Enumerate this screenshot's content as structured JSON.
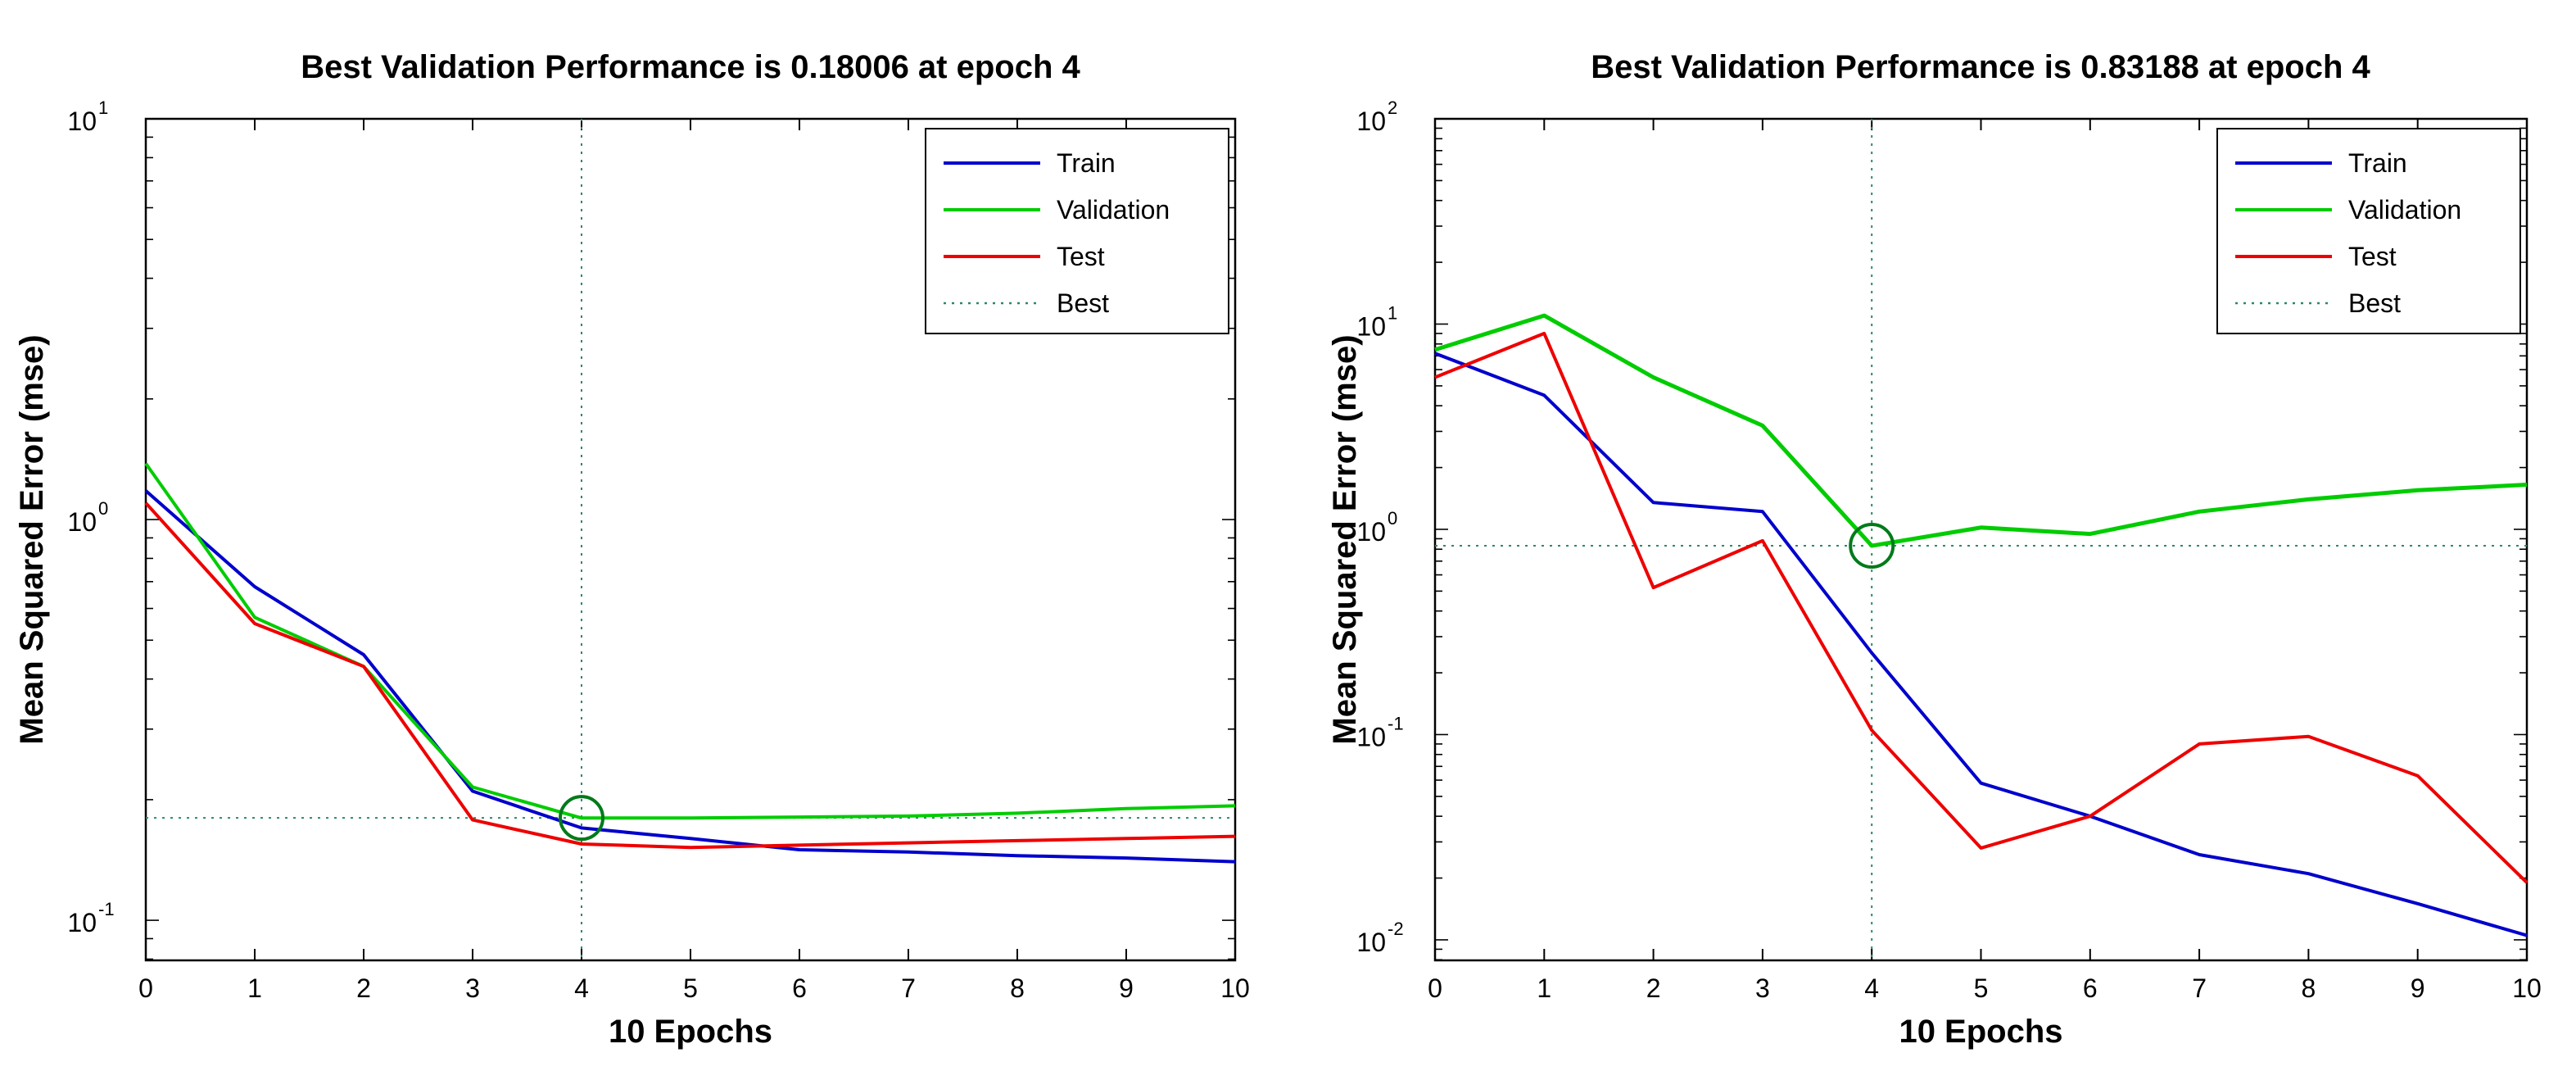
{
  "chart_data": [
    {
      "type": "line",
      "title": "Best Validation Performance is 0.18006 at epoch 4",
      "xlabel": "10 Epochs",
      "ylabel": "Mean Squared Error  (mse)",
      "yscale": "log",
      "xlim": [
        0,
        10
      ],
      "ylim_exp": [
        -1.1,
        1
      ],
      "xticks": [
        "0",
        "1",
        "2",
        "3",
        "4",
        "5",
        "6",
        "7",
        "8",
        "9",
        "10"
      ],
      "yticks": [
        {
          "base": "10",
          "exp": "-1",
          "e": -1
        },
        {
          "base": "10",
          "exp": "0",
          "e": 0
        },
        {
          "base": "10",
          "exp": "1",
          "e": 1
        }
      ],
      "best_epoch": 4,
      "best_value": 0.18006,
      "legend_position": "top-right",
      "legend": [
        "Train",
        "Validation",
        "Test",
        "Best"
      ],
      "series": [
        {
          "name": "Train",
          "color": "#0000cc",
          "x": [
            0,
            1,
            2,
            3,
            4,
            5,
            6,
            7,
            8,
            9,
            10
          ],
          "values": [
            1.18,
            0.68,
            0.46,
            0.21,
            0.17,
            0.16,
            0.15,
            0.148,
            0.145,
            0.143,
            0.14
          ]
        },
        {
          "name": "Validation",
          "color": "#00cc00",
          "x": [
            0,
            1,
            2,
            3,
            4,
            5,
            6,
            7,
            8,
            9,
            10
          ],
          "values": [
            1.38,
            0.57,
            0.43,
            0.215,
            0.18,
            0.18,
            0.181,
            0.182,
            0.185,
            0.19,
            0.193
          ]
        },
        {
          "name": "Test",
          "color": "#ee0000",
          "x": [
            0,
            1,
            2,
            3,
            4,
            5,
            6,
            7,
            8,
            9,
            10
          ],
          "values": [
            1.1,
            0.55,
            0.43,
            0.178,
            0.155,
            0.152,
            0.154,
            0.156,
            0.158,
            0.16,
            0.162
          ]
        }
      ]
    },
    {
      "type": "line",
      "title": "Best Validation Performance is 0.83188 at epoch 4",
      "xlabel": "10 Epochs",
      "ylabel": "Mean Squared Error  (mse)",
      "yscale": "log",
      "xlim": [
        0,
        10
      ],
      "ylim_exp": [
        -2.1,
        2
      ],
      "xticks": [
        "0",
        "1",
        "2",
        "3",
        "4",
        "5",
        "6",
        "7",
        "8",
        "9",
        "10"
      ],
      "yticks": [
        {
          "base": "10",
          "exp": "-2",
          "e": -2
        },
        {
          "base": "10",
          "exp": "-1",
          "e": -1
        },
        {
          "base": "10",
          "exp": "0",
          "e": 0
        },
        {
          "base": "10",
          "exp": "1",
          "e": 1
        },
        {
          "base": "10",
          "exp": "2",
          "e": 2
        }
      ],
      "best_epoch": 4,
      "best_value": 0.83188,
      "legend_position": "top-right",
      "legend": [
        "Train",
        "Validation",
        "Test",
        "Best"
      ],
      "series": [
        {
          "name": "Train",
          "color": "#0000cc",
          "x": [
            0,
            1,
            2,
            3,
            4,
            5,
            6,
            7,
            8,
            9,
            10
          ],
          "values": [
            7.2,
            4.5,
            1.35,
            1.22,
            0.25,
            0.058,
            0.04,
            0.026,
            0.021,
            0.015,
            0.0105
          ]
        },
        {
          "name": "Validation",
          "color": "#00cc00",
          "x": [
            0,
            1,
            2,
            3,
            4,
            5,
            6,
            7,
            8,
            9,
            10
          ],
          "values": [
            7.5,
            11,
            5.5,
            3.2,
            0.83188,
            1.02,
            0.95,
            1.22,
            1.4,
            1.55,
            1.65
          ]
        },
        {
          "name": "Test",
          "color": "#ee0000",
          "x": [
            0,
            1,
            2,
            3,
            4,
            5,
            6,
            7,
            8,
            9,
            10
          ],
          "values": [
            5.5,
            9,
            0.52,
            0.88,
            0.105,
            0.028,
            0.04,
            0.09,
            0.098,
            0.063,
            0.019
          ]
        }
      ]
    }
  ]
}
